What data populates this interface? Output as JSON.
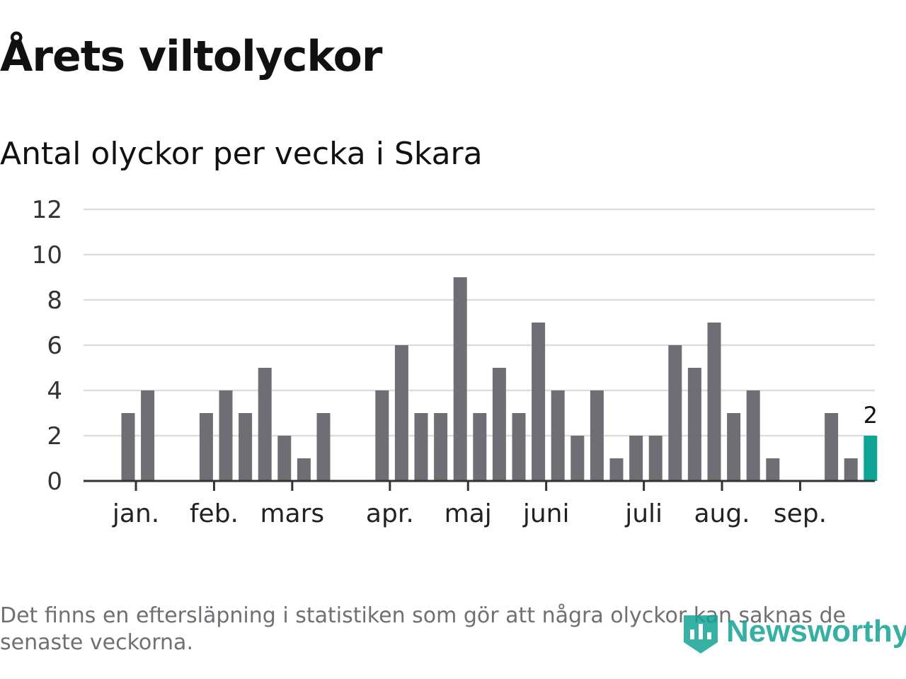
{
  "header": {
    "title": "Årets viltolyckor",
    "subtitle": "Antal olyckor per vecka i Skara"
  },
  "footer": {
    "note": "Det finns en eftersläpning i statistiken som gör att några olyckor kan saknas de senaste veckorna.",
    "brand": "Newsworthy"
  },
  "colors": {
    "bar": "#6f6e74",
    "highlight": "#0ea594",
    "grid": "#dddddd",
    "axis": "#333333"
  },
  "chart_data": {
    "type": "bar",
    "ylim": [
      0,
      12
    ],
    "yticks": [
      0,
      2,
      4,
      6,
      8,
      10,
      12
    ],
    "grid": true,
    "weeks": [
      1,
      2,
      3,
      4,
      5,
      6,
      7,
      8,
      9,
      10,
      11,
      12,
      13,
      14,
      15,
      16,
      17,
      18,
      19,
      20,
      21,
      22,
      23,
      24,
      25,
      26,
      27,
      28,
      29,
      30,
      31,
      32,
      33,
      34,
      35,
      36,
      37,
      38,
      39
    ],
    "values": [
      3,
      4,
      0,
      0,
      3,
      4,
      3,
      5,
      2,
      1,
      3,
      0,
      0,
      4,
      6,
      3,
      3,
      9,
      3,
      5,
      3,
      7,
      4,
      2,
      4,
      1,
      2,
      2,
      6,
      5,
      7,
      3,
      4,
      1,
      0,
      0,
      3,
      1,
      2
    ],
    "highlight_index": 38,
    "highlight_label": "2",
    "month_ticks": [
      {
        "label": "jan.",
        "week": 1.4
      },
      {
        "label": "feb.",
        "week": 5.4
      },
      {
        "label": "mars",
        "week": 9.4
      },
      {
        "label": "apr.",
        "week": 14.4
      },
      {
        "label": "maj",
        "week": 18.4
      },
      {
        "label": "juni",
        "week": 22.4
      },
      {
        "label": "juli",
        "week": 27.4
      },
      {
        "label": "aug.",
        "week": 31.4
      },
      {
        "label": "sep.",
        "week": 35.4
      }
    ]
  }
}
